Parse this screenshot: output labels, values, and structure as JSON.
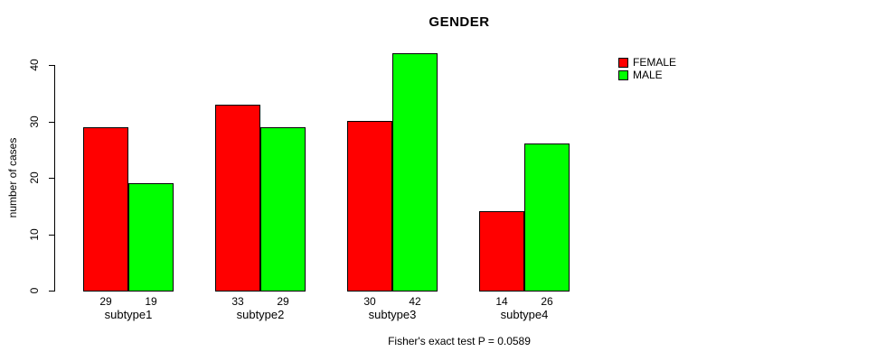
{
  "chart_data": {
    "type": "bar",
    "grouped": true,
    "title": "GENDER",
    "ylabel": "number of cases",
    "xlabel": "",
    "ylim": [
      0,
      40
    ],
    "yticks": [
      0,
      10,
      20,
      30,
      40
    ],
    "categories": [
      "subtype1",
      "subtype2",
      "subtype3",
      "subtype4"
    ],
    "series": [
      {
        "name": "FEMALE",
        "color": "#ff0000",
        "values": [
          29,
          33,
          30,
          14
        ]
      },
      {
        "name": "MALE",
        "color": "#00ff00",
        "values": [
          19,
          29,
          42,
          26
        ]
      }
    ],
    "bar_value_labels_shown": true,
    "legend_position": "right",
    "grid": false,
    "caption": "Fisher's exact test P = 0.0589"
  }
}
